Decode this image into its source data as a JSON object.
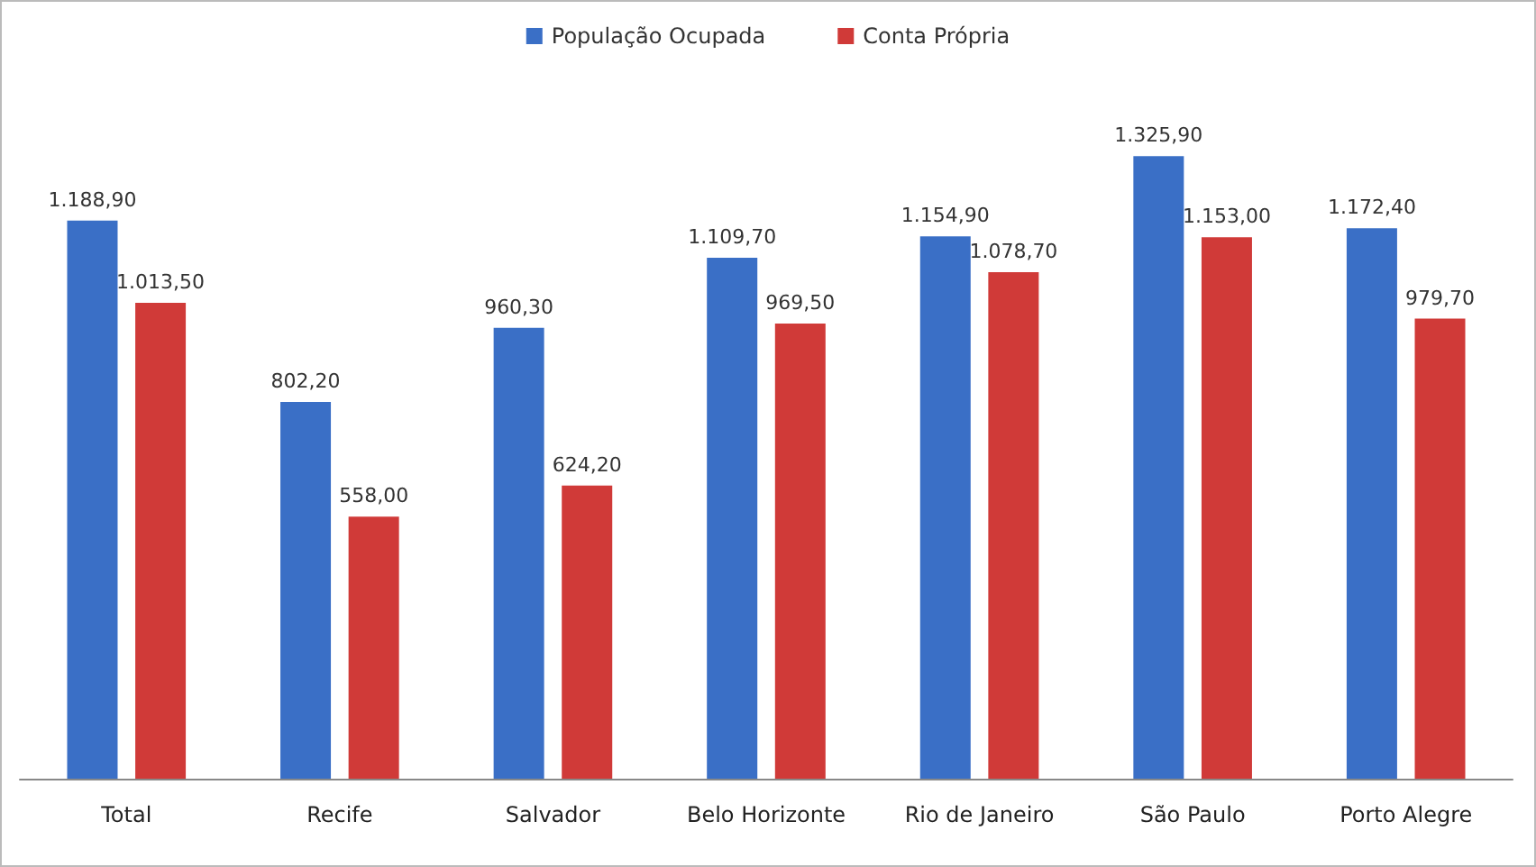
{
  "chart_data": {
    "type": "bar",
    "categories": [
      "Total",
      "Recife",
      "Salvador",
      "Belo Horizonte",
      "Rio de Janeiro",
      "São Paulo",
      "Porto Alegre"
    ],
    "series": [
      {
        "name": "População Ocupada",
        "color": "#3a6fc6",
        "values": [
          1188.9,
          802.2,
          960.3,
          1109.7,
          1154.9,
          1325.9,
          1172.4
        ],
        "value_labels": [
          "1.188,90",
          "802,20",
          "960,30",
          "1.109,70",
          "1.154,90",
          "1.325,90",
          "1.172,40"
        ]
      },
      {
        "name": "Conta Própria",
        "color": "#d03a38",
        "values": [
          1013.5,
          558.0,
          624.2,
          969.5,
          1078.7,
          1153.0,
          979.7
        ],
        "value_labels": [
          "1.013,50",
          "558,00",
          "624,20",
          "969,50",
          "1.078,70",
          "1.153,00",
          "979,70"
        ]
      }
    ],
    "grid": false,
    "legend": "top"
  }
}
